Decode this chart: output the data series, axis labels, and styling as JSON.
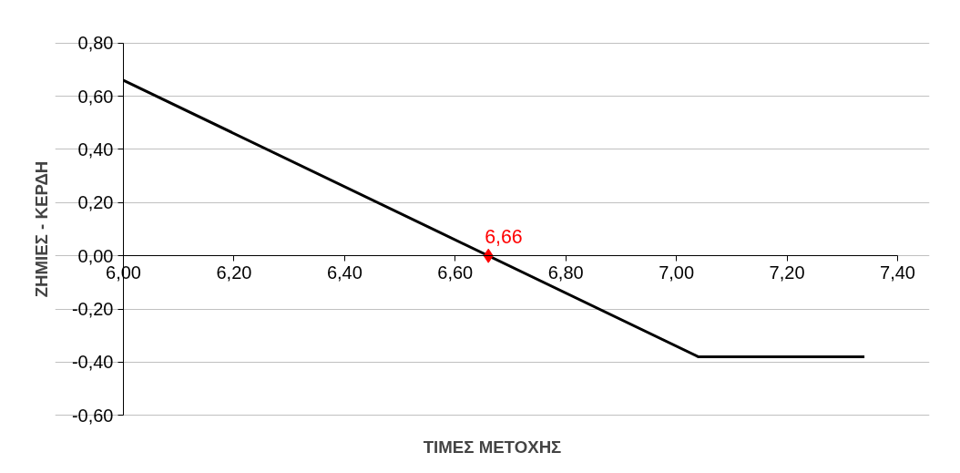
{
  "chart_data": {
    "type": "line",
    "xlabel": "ΤΙΜΕΣ ΜΕΤΟΧΗΣ",
    "ylabel": "ΖΗΜΙΕΣ - ΚΕΡΔΗ",
    "series": [
      {
        "color": "#000000",
        "x": [
          6.0,
          7.04,
          7.34
        ],
        "values": [
          0.66,
          -0.38,
          -0.38
        ],
        "marker": "none"
      },
      {
        "type": "scatter",
        "color": "#ff0000",
        "x": [
          6.66
        ],
        "values": [
          0
        ],
        "marker": "diamond"
      }
    ],
    "annotations": [
      {
        "text": "6,66",
        "x": 6.66,
        "y": 0
      }
    ],
    "xlim": [
      6.0,
      7.4
    ],
    "xticks": [
      {
        "value": 6.0,
        "label": "6,00"
      },
      {
        "value": 6.2,
        "label": "6,20"
      },
      {
        "value": 6.4,
        "label": "6,40"
      },
      {
        "value": 6.6,
        "label": "6,60"
      },
      {
        "value": 6.8,
        "label": "6,80"
      },
      {
        "value": 7.0,
        "label": "7,00"
      },
      {
        "value": 7.2,
        "label": "7,20"
      },
      {
        "value": 7.4,
        "label": "7,40"
      }
    ],
    "ylim": [
      -0.6,
      0.8
    ],
    "yticks": [
      {
        "value": -0.6,
        "label": "-0,60"
      },
      {
        "value": -0.4,
        "label": "-0,40"
      },
      {
        "value": -0.2,
        "label": "-0,20"
      },
      {
        "value": 0,
        "label": "0,00"
      },
      {
        "value": 0.2,
        "label": "0,20"
      },
      {
        "value": 0.4,
        "label": "0,40"
      },
      {
        "value": 0.6,
        "label": "0,60"
      },
      {
        "value": 0.8,
        "label": "0,80"
      }
    ],
    "grid": "y"
  }
}
